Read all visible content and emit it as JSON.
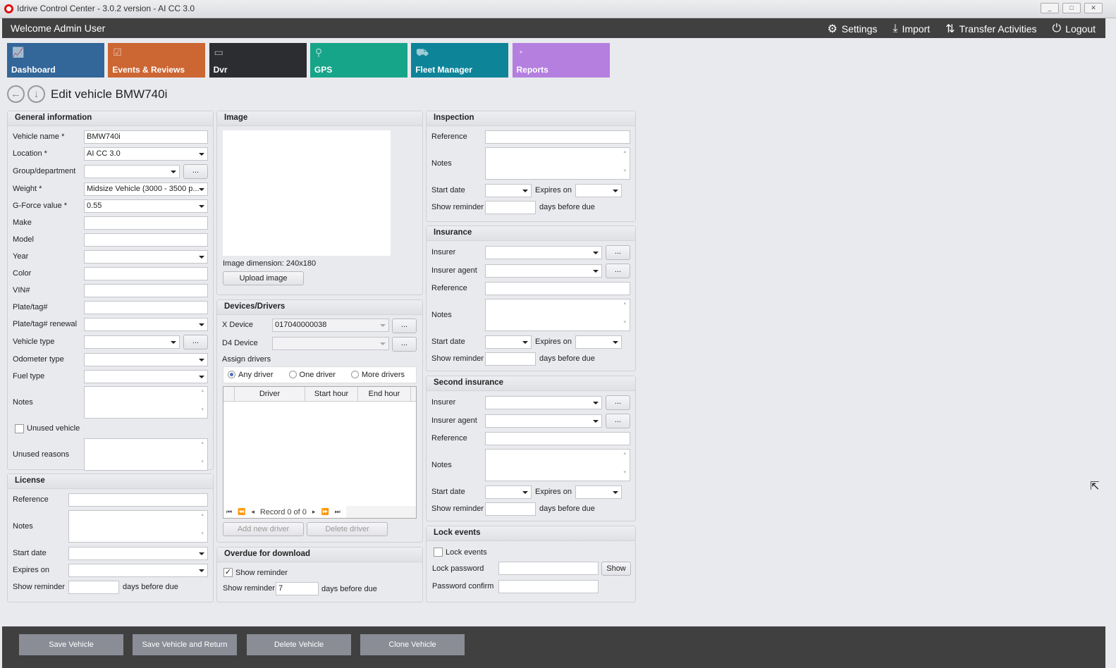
{
  "window": {
    "title": "Idrive Control Center - 3.0.2 version - AI CC 3.0",
    "minimize": "_",
    "maximize": "□",
    "close": "✕"
  },
  "header": {
    "welcome": "Welcome Admin User",
    "settings": "Settings",
    "import": "Import",
    "transfer": "Transfer Activities",
    "logout": "Logout"
  },
  "tiles": [
    {
      "label": "Dashboard",
      "color": "#336699",
      "icon": "chart-icon"
    },
    {
      "label": "Events & Reviews",
      "color": "#cc6633",
      "icon": "clipboard-icon"
    },
    {
      "label": "Dvr",
      "color": "#2b2d31",
      "icon": "dvr-icon"
    },
    {
      "label": "GPS",
      "color": "#17a589",
      "icon": "map-pin-icon"
    },
    {
      "label": "Fleet Manager",
      "color": "#0e8499",
      "icon": "vehicles-icon"
    },
    {
      "label": "Reports",
      "color": "#b57fe0",
      "icon": "pie-chart-icon"
    }
  ],
  "page": {
    "title": "Edit vehicle BMW740i"
  },
  "general": {
    "title": "General information",
    "rows": [
      {
        "label": "Vehicle name *",
        "kind": "text",
        "value": "BMW740i"
      },
      {
        "label": "Location *",
        "kind": "select",
        "value": "AI CC 3.0"
      },
      {
        "label": "Group/department",
        "kind": "select-more",
        "value": "",
        "more": "..."
      },
      {
        "label": "Weight *",
        "kind": "select",
        "value": "Midsize Vehicle (3000 - 3500 p..."
      },
      {
        "label": "G-Force value *",
        "kind": "select",
        "value": "0.55"
      },
      {
        "label": "Make",
        "kind": "text",
        "value": ""
      },
      {
        "label": "Model",
        "kind": "text",
        "value": ""
      },
      {
        "label": "Year",
        "kind": "select",
        "value": ""
      },
      {
        "label": "Color",
        "kind": "text",
        "value": ""
      },
      {
        "label": "VIN#",
        "kind": "text",
        "value": ""
      },
      {
        "label": "Plate/tag#",
        "kind": "text",
        "value": ""
      },
      {
        "label": "Plate/tag# renewal",
        "kind": "select",
        "value": ""
      },
      {
        "label": "Vehicle type",
        "kind": "select-more",
        "value": "",
        "more": "..."
      },
      {
        "label": "Odometer type",
        "kind": "select",
        "value": ""
      },
      {
        "label": "Fuel type",
        "kind": "select",
        "value": ""
      },
      {
        "label": "Notes",
        "kind": "notes",
        "value": ""
      },
      {
        "label": "Unused vehicle",
        "kind": "check",
        "checked": false
      },
      {
        "label": "Unused reasons",
        "kind": "notes",
        "value": ""
      }
    ]
  },
  "license": {
    "title": "License",
    "rows": [
      {
        "label": "Reference",
        "kind": "text",
        "value": ""
      },
      {
        "label": "Notes",
        "kind": "notes",
        "value": ""
      },
      {
        "label": "Start date",
        "kind": "select",
        "value": ""
      },
      {
        "label": "Expires on",
        "kind": "select",
        "value": ""
      },
      {
        "label": "Show reminder",
        "kind": "days",
        "value": "",
        "suffix": "days before due"
      }
    ]
  },
  "image": {
    "title": "Image",
    "dimension_label": "Image dimension:",
    "dimension": "240x180",
    "upload": "Upload image"
  },
  "devices": {
    "title": "Devices/Drivers",
    "x_label": "X Device",
    "x_value": "017040000038",
    "d4_label": "D4 Device",
    "d4_value": "",
    "more": "...",
    "assign_label": "Assign drivers",
    "options": [
      {
        "label": "Any driver",
        "selected": true
      },
      {
        "label": "One driver",
        "selected": false
      },
      {
        "label": "More drivers",
        "selected": false
      }
    ],
    "columns": [
      "Driver",
      "Start hour",
      "End hour"
    ],
    "rows": [],
    "record": "Record 0 of 0",
    "add": "Add new driver",
    "delete": "Delete driver"
  },
  "overdue": {
    "title": "Overdue for download",
    "check_label": "Show reminder",
    "checked": true,
    "reminder_label": "Show reminder",
    "reminder_value": "7",
    "suffix": "days before due"
  },
  "inspection": {
    "title": "Inspection",
    "rows": [
      {
        "label": "Reference",
        "kind": "text",
        "value": ""
      },
      {
        "label": "Notes",
        "kind": "notes",
        "value": ""
      },
      {
        "label": "Start date",
        "kind": "dates",
        "value": "",
        "label2": "Expires on",
        "value2": ""
      },
      {
        "label": "Show reminder",
        "kind": "days",
        "value": "",
        "suffix": "days before due"
      }
    ]
  },
  "insurance": {
    "title": "Insurance",
    "rows": [
      {
        "label": "Insurer",
        "kind": "select-more",
        "value": "",
        "more": "..."
      },
      {
        "label": "Insurer agent",
        "kind": "select-more",
        "value": "",
        "more": "..."
      },
      {
        "label": "Reference",
        "kind": "text",
        "value": ""
      },
      {
        "label": "Notes",
        "kind": "notes",
        "value": ""
      },
      {
        "label": "Start date",
        "kind": "dates",
        "value": "",
        "label2": "Expires on",
        "value2": ""
      },
      {
        "label": "Show reminder",
        "kind": "days",
        "value": "",
        "suffix": "days before due"
      }
    ]
  },
  "second_insurance": {
    "title": "Second insurance",
    "rows": [
      {
        "label": "Insurer",
        "kind": "select-more",
        "value": "",
        "more": "..."
      },
      {
        "label": "Insurer agent",
        "kind": "select-more",
        "value": "",
        "more": "..."
      },
      {
        "label": "Reference",
        "kind": "text",
        "value": ""
      },
      {
        "label": "Notes",
        "kind": "notes",
        "value": ""
      },
      {
        "label": "Start date",
        "kind": "dates",
        "value": "",
        "label2": "Expires on",
        "value2": ""
      },
      {
        "label": "Show reminder",
        "kind": "days",
        "value": "",
        "suffix": "days before due"
      }
    ]
  },
  "lock": {
    "title": "Lock events",
    "check_label": "Lock events",
    "checked": false,
    "password_label": "Lock password",
    "password": "",
    "show": "Show",
    "confirm_label": "Password confirm",
    "confirm": ""
  },
  "footer": {
    "save": "Save Vehicle",
    "save_return": "Save Vehicle and Return",
    "delete": "Delete Vehicle",
    "clone": "Clone Vehicle"
  }
}
